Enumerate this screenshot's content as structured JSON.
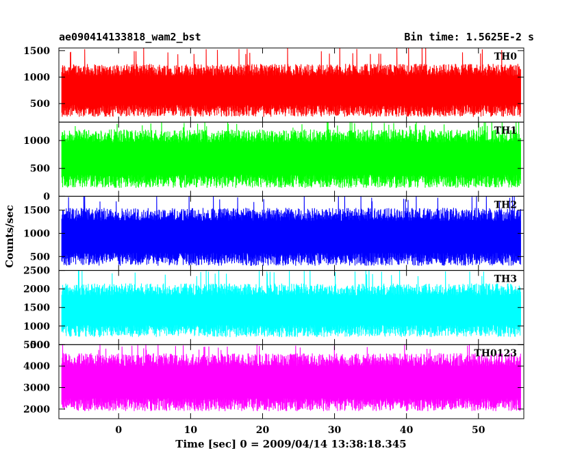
{
  "header": {
    "title": "ae090414133818_wam2_bst",
    "bin_time": "Bin time: 1.5625E-2 s"
  },
  "chart_data": {
    "type": "line",
    "title": "ae090414133818_wam2_bst",
    "xlabel": "Time [sec] 0 = 2009/04/14 13:38:18.345",
    "ylabel": "Counts/sec",
    "x_range": [
      -8.3,
      56.3
    ],
    "x_ticks": [
      0,
      10,
      20,
      30,
      40,
      50
    ],
    "bin_time_s": 0.015625,
    "grid": false,
    "legend": "none",
    "series": [
      {
        "name": "TH0",
        "color": "#ff0000",
        "ylim": [
          150,
          1550
        ],
        "y_ticks": [
          500,
          1000,
          1500
        ],
        "typical_range": [
          250,
          1250
        ],
        "spike_max": 1550
      },
      {
        "name": "TH1",
        "color": "#00ff00",
        "ylim": [
          0,
          1330
        ],
        "y_ticks": [
          0,
          500,
          1000
        ],
        "typical_range": [
          150,
          1200
        ],
        "spike_max": 1330
      },
      {
        "name": "TH2",
        "color": "#0000ff",
        "ylim": [
          200,
          1800
        ],
        "y_ticks": [
          500,
          1000,
          1500
        ],
        "typical_range": [
          300,
          1550
        ],
        "spike_max": 1800
      },
      {
        "name": "TH3",
        "color": "#00ffff",
        "ylim": [
          500,
          2500
        ],
        "y_ticks": [
          500,
          1000,
          1500,
          2000,
          2500
        ],
        "typical_range": [
          700,
          2150
        ],
        "spike_max": 2500
      },
      {
        "name": "TH0123",
        "color": "#ff00ff",
        "ylim": [
          1550,
          5000
        ],
        "y_ticks": [
          2000,
          3000,
          4000,
          5000
        ],
        "typical_range": [
          1900,
          4600
        ],
        "spike_max": 5000
      }
    ]
  }
}
